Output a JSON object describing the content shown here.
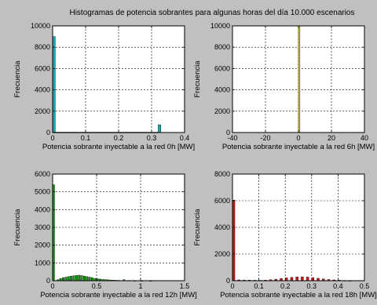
{
  "figure": {
    "title": "Histogramas de potencia sobrantes para algunas horas del día 10.000 escenarios",
    "background": "#c0c0c0"
  },
  "chart_data": [
    {
      "type": "bar",
      "xlabel": "Potencia sobrante inyectable a la red 0h [MW]",
      "ylabel": "Frecuencia",
      "xlim": [
        0,
        0.4
      ],
      "ylim": [
        0,
        10000
      ],
      "xticks": [
        0,
        0.1,
        0.2,
        0.3,
        0.4
      ],
      "yticks": [
        0,
        2000,
        4000,
        6000,
        8000,
        10000
      ],
      "xtick_labels": [
        "0",
        "0.1",
        "0.2",
        "0.3",
        "0.4"
      ],
      "ytick_labels": [
        "0",
        "2000",
        "4000",
        "6000",
        "8000",
        "10000"
      ],
      "grid": true,
      "color": "#1aa8ac",
      "bin_width": 0.008,
      "bins": [
        {
          "x": 0.0,
          "y": 9000
        },
        {
          "x": 0.32,
          "y": 720
        }
      ],
      "baseline": {
        "from": 0.0,
        "to": 0.32,
        "y": 35
      }
    },
    {
      "type": "bar",
      "xlabel": "Potencia sobrante inyectable a la red 6h [MW]",
      "ylabel": "Frecuencia",
      "xlim": [
        -40,
        40
      ],
      "ylim": [
        0,
        10000
      ],
      "xticks": [
        -40,
        -20,
        0,
        20,
        40
      ],
      "yticks": [
        0,
        2000,
        4000,
        6000,
        8000,
        10000
      ],
      "xtick_labels": [
        "-40",
        "-20",
        "0",
        "20",
        "40"
      ],
      "ytick_labels": [
        "0",
        "2000",
        "4000",
        "6000",
        "8000",
        "10000"
      ],
      "grid": true,
      "color": "#d8d800",
      "bin_width": 0.9,
      "bins": [
        {
          "x": 0,
          "y": 10000
        }
      ]
    },
    {
      "type": "bar",
      "xlabel": "Potencia sobrante inyectable a la red 12h [MW]",
      "ylabel": "Frecuencia",
      "xlim": [
        0,
        1.5
      ],
      "ylim": [
        0,
        6000
      ],
      "xticks": [
        0,
        0.5,
        1,
        1.5
      ],
      "yticks": [
        0,
        1000,
        2000,
        3000,
        4000,
        5000,
        6000
      ],
      "xtick_labels": [
        "0",
        "0.5",
        "1",
        "1.5"
      ],
      "ytick_labels": [
        "0",
        "1000",
        "2000",
        "3000",
        "4000",
        "5000",
        "6000"
      ],
      "grid": true,
      "color": "#129a12",
      "bin_width": 0.022,
      "bins": [
        {
          "x": 0.0,
          "y": 5400
        },
        {
          "x": 0.05,
          "y": 60
        },
        {
          "x": 0.08,
          "y": 120
        },
        {
          "x": 0.11,
          "y": 170
        },
        {
          "x": 0.14,
          "y": 200
        },
        {
          "x": 0.17,
          "y": 230
        },
        {
          "x": 0.2,
          "y": 260
        },
        {
          "x": 0.23,
          "y": 280
        },
        {
          "x": 0.26,
          "y": 300
        },
        {
          "x": 0.29,
          "y": 310
        },
        {
          "x": 0.32,
          "y": 290
        },
        {
          "x": 0.35,
          "y": 260
        },
        {
          "x": 0.38,
          "y": 230
        },
        {
          "x": 0.41,
          "y": 200
        },
        {
          "x": 0.44,
          "y": 170
        },
        {
          "x": 0.47,
          "y": 130
        },
        {
          "x": 0.5,
          "y": 110
        },
        {
          "x": 0.53,
          "y": 90
        },
        {
          "x": 0.56,
          "y": 70
        },
        {
          "x": 0.59,
          "y": 60
        },
        {
          "x": 0.62,
          "y": 50
        },
        {
          "x": 0.65,
          "y": 40
        },
        {
          "x": 0.68,
          "y": 30
        },
        {
          "x": 0.71,
          "y": 25
        },
        {
          "x": 0.74,
          "y": 20
        },
        {
          "x": 0.8,
          "y": 60
        },
        {
          "x": 0.86,
          "y": 15
        },
        {
          "x": 0.92,
          "y": 10
        },
        {
          "x": 1.0,
          "y": 8
        },
        {
          "x": 1.1,
          "y": 5
        }
      ]
    },
    {
      "type": "bar",
      "xlabel": "Potencia sobrante inyectable a la red 18h [MW]",
      "ylabel": "Frecuencia",
      "xlim": [
        0,
        0.5
      ],
      "ylim": [
        0,
        8000
      ],
      "xticks": [
        0,
        0.1,
        0.2,
        0.3,
        0.4,
        0.5
      ],
      "yticks": [
        0,
        2000,
        4000,
        6000,
        8000
      ],
      "xtick_labels": [
        "0",
        "0.1",
        "0.2",
        "0.3",
        "0.4",
        "0.5"
      ],
      "ytick_labels": [
        "0",
        "2000",
        "4000",
        "6000",
        "8000"
      ],
      "grid": true,
      "color": "#d01818",
      "bin_width": 0.009,
      "bins": [
        {
          "x": 0.0,
          "y": 6050
        },
        {
          "x": 0.02,
          "y": 60
        },
        {
          "x": 0.04,
          "y": 50
        },
        {
          "x": 0.06,
          "y": 40
        },
        {
          "x": 0.08,
          "y": 35
        },
        {
          "x": 0.1,
          "y": 30
        },
        {
          "x": 0.12,
          "y": 40
        },
        {
          "x": 0.14,
          "y": 70
        },
        {
          "x": 0.16,
          "y": 110
        },
        {
          "x": 0.18,
          "y": 160
        },
        {
          "x": 0.2,
          "y": 210
        },
        {
          "x": 0.22,
          "y": 250
        },
        {
          "x": 0.24,
          "y": 280
        },
        {
          "x": 0.26,
          "y": 290
        },
        {
          "x": 0.28,
          "y": 270
        },
        {
          "x": 0.3,
          "y": 230
        },
        {
          "x": 0.32,
          "y": 180
        },
        {
          "x": 0.34,
          "y": 130
        },
        {
          "x": 0.36,
          "y": 90
        },
        {
          "x": 0.38,
          "y": 60
        },
        {
          "x": 0.4,
          "y": 40
        },
        {
          "x": 0.42,
          "y": 20
        },
        {
          "x": 0.44,
          "y": 10
        }
      ]
    }
  ]
}
